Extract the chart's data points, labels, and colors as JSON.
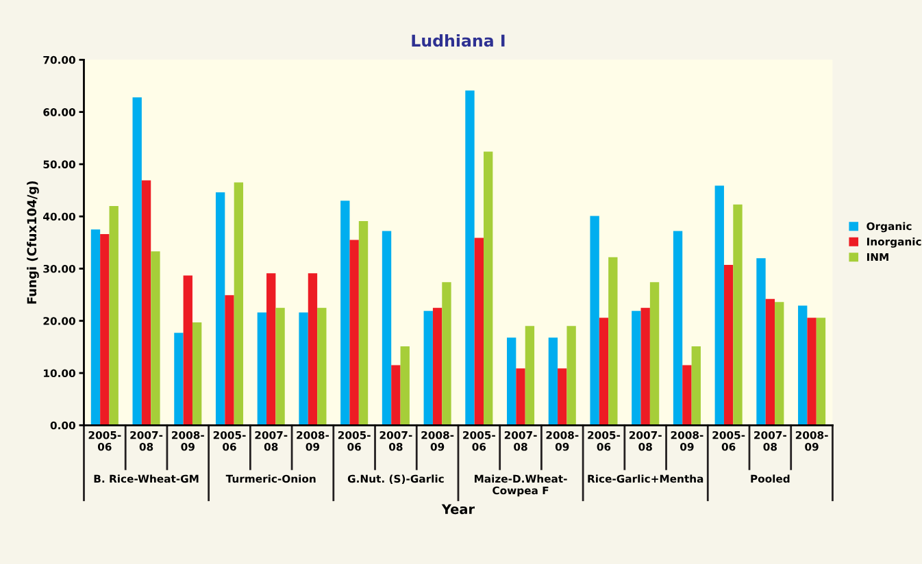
{
  "chart_data": {
    "type": "bar",
    "title": "Ludhiana I",
    "xlabel": "Year",
    "ylabel": "Fungi (Cfux104/g)",
    "categories": [
      "2005-06",
      "2007-08",
      "2008-09",
      "2005-06",
      "2007-08",
      "2008-09",
      "2005-06",
      "2007-08",
      "2008-09",
      "2005-06",
      "2007-08",
      "2008-09",
      "2005-06",
      "2007-08",
      "2008-09",
      "2005-06",
      "2007-08",
      "2008-09"
    ],
    "annotations": [
      "B. Rice-Wheat-GM",
      "Turmeric-Onion",
      "G.Nut. (S)-Garlic",
      "Maize-D.Wheat-Cowpea F",
      "Rice-Garlic+Mentha",
      "Pooled"
    ],
    "series": [
      {
        "name": "Organic",
        "color": "#00aeef",
        "values": [
          37.5,
          62.8,
          17.7,
          44.6,
          21.6,
          21.6,
          43.0,
          37.2,
          21.9,
          64.1,
          16.8,
          16.8,
          40.1,
          21.9,
          37.2,
          45.9,
          32.0,
          22.9
        ]
      },
      {
        "name": "Inorganic",
        "color": "#ed1c24",
        "values": [
          36.6,
          46.9,
          28.7,
          24.9,
          29.1,
          29.1,
          35.5,
          11.5,
          22.5,
          35.9,
          10.9,
          10.9,
          20.6,
          22.5,
          11.5,
          30.7,
          24.2,
          20.6
        ]
      },
      {
        "name": "INM",
        "color": "#a6ce39",
        "values": [
          42.0,
          33.3,
          19.7,
          46.5,
          22.5,
          22.5,
          39.1,
          15.1,
          27.4,
          52.4,
          19.0,
          19.0,
          32.2,
          27.4,
          15.1,
          42.3,
          23.6,
          20.6
        ]
      }
    ],
    "ylim": [
      0,
      70
    ],
    "yticks": [
      {
        "value": 0,
        "label": "0.00"
      },
      {
        "value": 10,
        "label": "10.00"
      },
      {
        "value": 20,
        "label": "20.00"
      },
      {
        "value": 30,
        "label": "30.00"
      },
      {
        "value": 40,
        "label": "40.00"
      },
      {
        "value": 50,
        "label": "50.00"
      },
      {
        "value": 60,
        "label": "60.00"
      },
      {
        "value": 70,
        "label": "70.00"
      }
    ],
    "grid": false,
    "legend": "right"
  }
}
